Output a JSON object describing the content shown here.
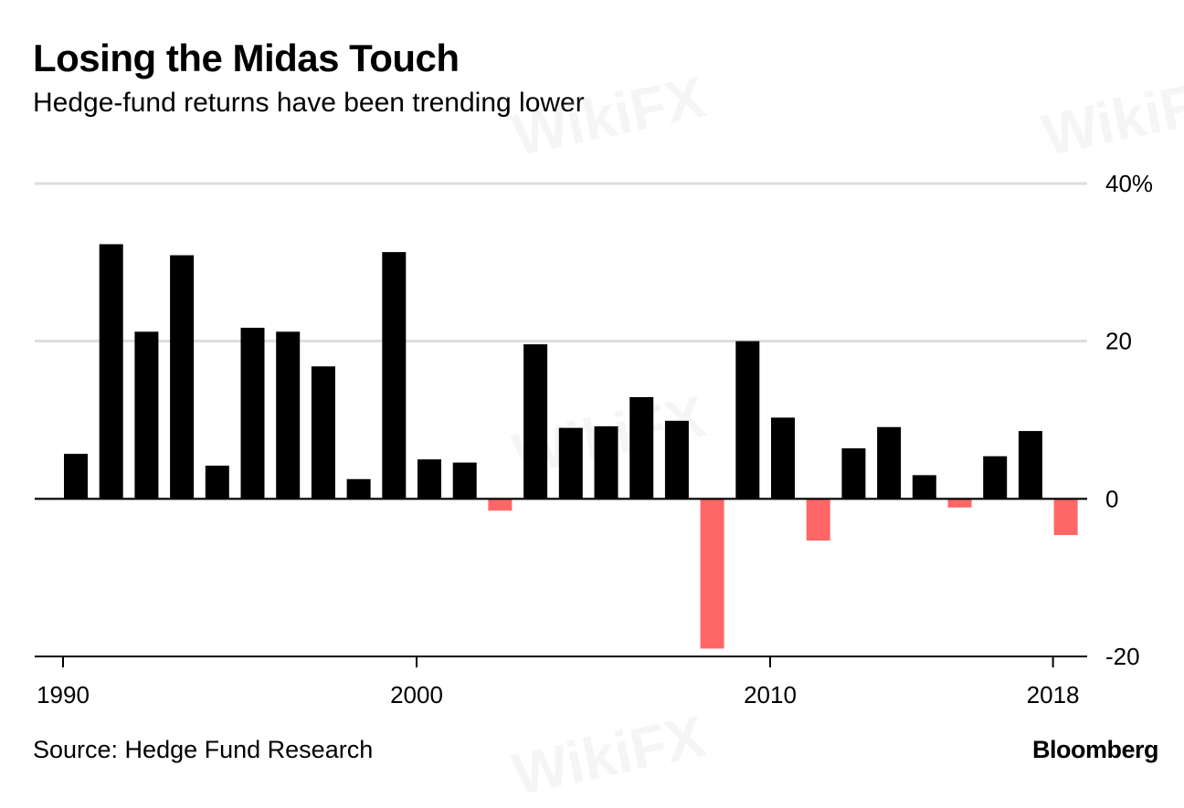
{
  "header": {
    "title": "Losing the Midas Touch",
    "subtitle": "Hedge-fund returns have been trending lower"
  },
  "footer": {
    "source": "Source: Hedge Fund Research",
    "brand": "Bloomberg"
  },
  "watermark_text": "WikiFX",
  "colors": {
    "positive": "#000000",
    "negative": "#ff6666",
    "grid": "#dddddd",
    "axis": "#000000"
  },
  "chart_data": {
    "type": "bar",
    "title": "Losing the Midas Touch",
    "subtitle": "Hedge-fund returns have been trending lower",
    "xlabel": "",
    "ylabel": "",
    "categories": [
      1990,
      1991,
      1992,
      1993,
      1994,
      1995,
      1996,
      1997,
      1998,
      1999,
      2000,
      2001,
      2002,
      2003,
      2004,
      2005,
      2006,
      2007,
      2008,
      2009,
      2010,
      2011,
      2012,
      2013,
      2014,
      2015,
      2016,
      2017,
      2018
    ],
    "values": [
      5.7,
      32.3,
      21.2,
      30.9,
      4.2,
      21.7,
      21.2,
      16.8,
      2.5,
      31.3,
      5.0,
      4.6,
      -1.5,
      19.6,
      9.0,
      9.2,
      12.9,
      9.9,
      -19.0,
      20.0,
      10.3,
      -5.3,
      6.4,
      9.1,
      3.0,
      -1.1,
      5.4,
      8.6,
      -4.6
    ],
    "ylim": [
      -20,
      40
    ],
    "y_ticks": [
      {
        "value": 40,
        "label": "40%"
      },
      {
        "value": 20,
        "label": "20"
      },
      {
        "value": 0,
        "label": "0"
      },
      {
        "value": -20,
        "label": "-20"
      }
    ],
    "x_ticks": [
      {
        "value": 1990,
        "label": "1990"
      },
      {
        "value": 2000,
        "label": "2000"
      },
      {
        "value": 2010,
        "label": "2010"
      },
      {
        "value": 2018,
        "label": "2018"
      }
    ],
    "y_axis_side": "right",
    "grid": true,
    "negative_color_rule": "negative values shown in red"
  }
}
